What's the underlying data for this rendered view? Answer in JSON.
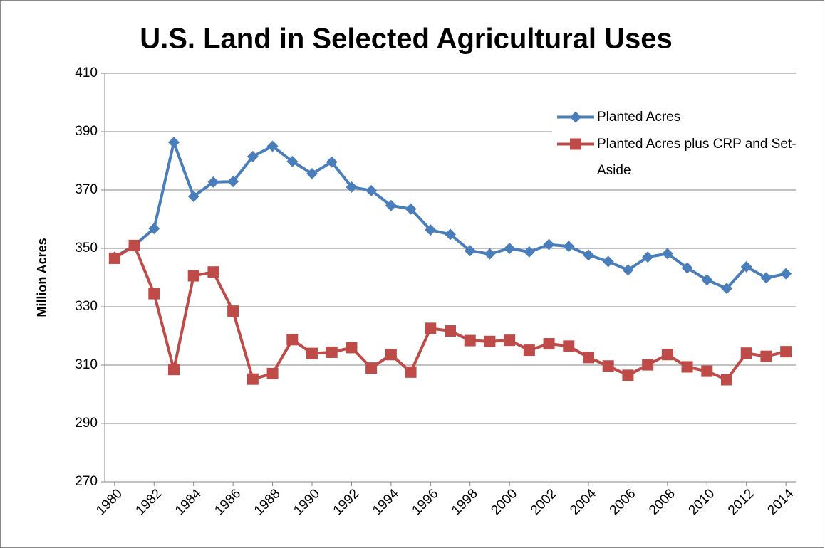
{
  "chart_data": {
    "type": "line",
    "title": "U.S. Land in Selected Agricultural Uses",
    "y_label": "Million Acres",
    "x": [
      1980,
      1981,
      1982,
      1983,
      1984,
      1985,
      1986,
      1987,
      1988,
      1989,
      1990,
      1991,
      1992,
      1993,
      1994,
      1995,
      1996,
      1997,
      1998,
      1999,
      2000,
      2001,
      2002,
      2003,
      2004,
      2005,
      2006,
      2007,
      2008,
      2009,
      2010,
      2011,
      2012,
      2013,
      2014
    ],
    "series": [
      {
        "name": "Planted Acres",
        "color": "#4a7ebb",
        "values": [
          347,
          351,
          356.8,
          386.3,
          367.8,
          372.7,
          372.9,
          381.5,
          385,
          379.8,
          375.6,
          379.6,
          371,
          369.8,
          364.7,
          363.5,
          356.3,
          354.8,
          349.2,
          348.1,
          350,
          348.8,
          351.3,
          350.7,
          347.7,
          345.5,
          342.6,
          347,
          348.2,
          343.3,
          339.2,
          336.3,
          343.7,
          339.9,
          341.3
        ]
      },
      {
        "name": "Planted Acres plus CRP and Set-Aside",
        "color": "#be4b48",
        "values": [
          346.6,
          351,
          334.5,
          308.5,
          340.6,
          341.9,
          328.5,
          305.2,
          307.1,
          318.7,
          314,
          314.4,
          316,
          309,
          313.6,
          307.6,
          322.6,
          321.7,
          318.4,
          318.1,
          318.5,
          315.1,
          317.3,
          316.5,
          312.6,
          309.7,
          306.5,
          310.1,
          313.6,
          309.4,
          307.9,
          305,
          314.1,
          313,
          314.6
        ]
      }
    ],
    "xlim": [
      1979.5,
      2014.5
    ],
    "xticks": [
      1980,
      1982,
      1984,
      1986,
      1988,
      1990,
      1992,
      1994,
      1996,
      1998,
      2000,
      2002,
      2004,
      2006,
      2008,
      2010,
      2012,
      2014
    ],
    "ylim": [
      270,
      410
    ],
    "yticks": [
      270,
      290,
      310,
      330,
      350,
      370,
      390,
      410
    ],
    "grid": true,
    "legend": "top-right"
  }
}
